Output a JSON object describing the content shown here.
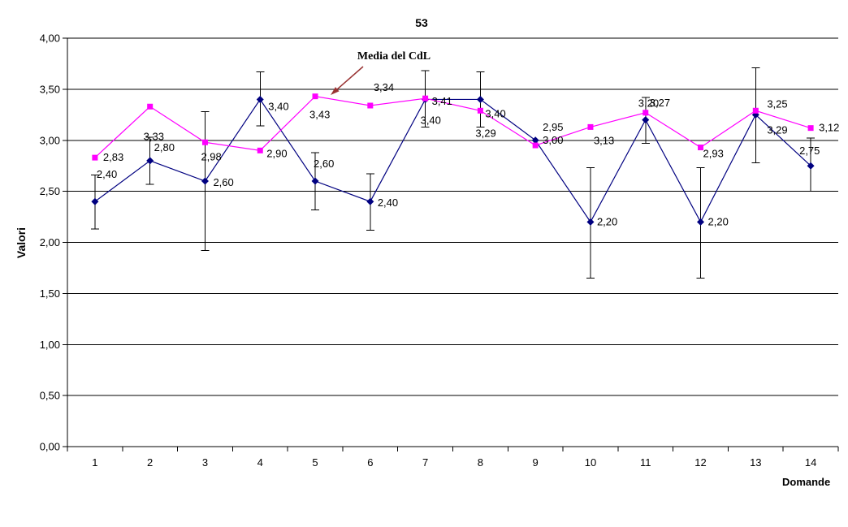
{
  "chart_data": {
    "type": "line",
    "title": "53",
    "xlabel": "Domande",
    "ylabel": "Valori",
    "ylim": [
      0,
      4
    ],
    "y_tick_step": 0.5,
    "grid": "horizontal",
    "legend": "none",
    "y_ticks": [
      {
        "value": 4.0,
        "label": "4,00"
      },
      {
        "value": 3.5,
        "label": "3,50"
      },
      {
        "value": 3.0,
        "label": "3,00"
      },
      {
        "value": 2.5,
        "label": "2,50"
      },
      {
        "value": 2.0,
        "label": "2,00"
      },
      {
        "value": 1.5,
        "label": "1,50"
      },
      {
        "value": 1.0,
        "label": "1,00"
      },
      {
        "value": 0.5,
        "label": "0,50"
      },
      {
        "value": 0.0,
        "label": "0,00"
      }
    ],
    "categories": [
      "1",
      "2",
      "3",
      "4",
      "5",
      "6",
      "7",
      "8",
      "9",
      "10",
      "11",
      "12",
      "13",
      "14"
    ],
    "series": [
      {
        "name": "",
        "color": "#000080",
        "marker": "diamond",
        "values": [
          2.4,
          2.8,
          2.6,
          3.4,
          2.6,
          2.4,
          3.4,
          3.4,
          3.0,
          2.2,
          3.2,
          2.2,
          3.25,
          2.75
        ],
        "labels": [
          "2,40",
          "2,80",
          "2,60",
          "3,40",
          "2,60",
          "2,40",
          "3,40",
          "3,40",
          "3,00",
          "2,20",
          "3,20",
          "2,20",
          "3,25",
          "2,75"
        ],
        "label_offsets": [
          [
            2,
            -29
          ],
          [
            5,
            -12
          ],
          [
            10,
            6
          ],
          [
            10,
            13
          ],
          [
            -2,
            -17
          ],
          [
            9,
            6
          ],
          [
            -6,
            30
          ],
          [
            6,
            22
          ],
          [
            9,
            4
          ],
          [
            8,
            4
          ],
          [
            -9,
            -16
          ],
          [
            9,
            4
          ],
          [
            14,
            -9
          ],
          [
            -14,
            -14
          ]
        ],
        "error_bars": [
          [
            2.13,
            2.66
          ],
          [
            2.57,
            3.03
          ],
          [
            1.92,
            3.28
          ],
          [
            3.14,
            3.67
          ],
          [
            2.32,
            2.88
          ],
          [
            2.12,
            2.67
          ],
          [
            3.13,
            3.68
          ],
          [
            3.13,
            3.67
          ],
          null,
          [
            1.65,
            2.73
          ],
          [
            2.97,
            3.42
          ],
          [
            1.65,
            2.73
          ],
          [
            2.78,
            3.71
          ],
          [
            2.5,
            3.02
          ]
        ]
      },
      {
        "name": "Media del CdL",
        "color": "#FF00FF",
        "marker": "square",
        "values": [
          2.83,
          3.33,
          2.98,
          2.9,
          3.43,
          3.34,
          3.41,
          3.29,
          2.95,
          3.13,
          3.27,
          2.93,
          3.29,
          3.12
        ],
        "labels": [
          "2,83",
          "3,33",
          "2,98",
          "2,90",
          "3,43",
          "3,34",
          "3,41",
          "3,29",
          "2,95",
          "3,13",
          "3,27",
          "2,93",
          "3,29",
          "3,12"
        ],
        "label_offsets": [
          [
            10,
            4
          ],
          [
            -8,
            41
          ],
          [
            -5,
            22
          ],
          [
            8,
            8
          ],
          [
            -7,
            27
          ],
          [
            4,
            -18
          ],
          [
            8,
            8
          ],
          [
            -6,
            32
          ],
          [
            9,
            -18
          ],
          [
            4,
            21
          ],
          [
            5,
            -8
          ],
          [
            3,
            12
          ],
          [
            14,
            28
          ],
          [
            10,
            4
          ]
        ],
        "error_bars": null
      }
    ],
    "annotation": {
      "text": "Media del CdL",
      "arrow_color": "#993333",
      "arrow_from": [
        447,
        82
      ],
      "arrow_to": [
        407,
        117
      ]
    }
  }
}
